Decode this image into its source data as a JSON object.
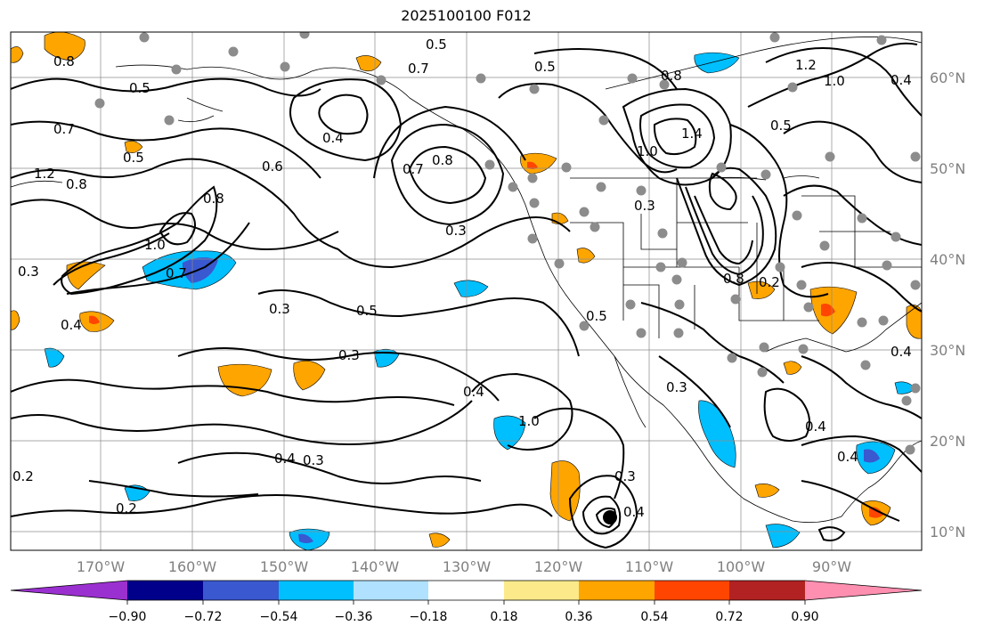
{
  "title": "2025100100 F012",
  "lat_labels": [
    "60°N",
    "50°N",
    "40°N",
    "30°N",
    "20°N",
    "10°N"
  ],
  "lon_labels": [
    "170°W",
    "160°W",
    "150°W",
    "140°W",
    "130°W",
    "120°W",
    "110°W",
    "100°W",
    "90°W"
  ],
  "colorbar": {
    "tick_labels": [
      "−0.90",
      "−0.72",
      "−0.54",
      "−0.36",
      "−0.18",
      "0.18",
      "0.36",
      "0.54",
      "0.72",
      "0.90"
    ],
    "colors": [
      "#9b30d0",
      "#00008b",
      "#3a58cf",
      "#00bfff",
      "#b0e2ff",
      "#ffffff",
      "#fbe98a",
      "#ffa500",
      "#ff4500",
      "#b22222",
      "#ff8fb1"
    ]
  },
  "contour_labels": [
    {
      "text": "0.5"
    },
    {
      "text": "0.7"
    },
    {
      "text": "0.8"
    },
    {
      "text": "0.5"
    },
    {
      "text": "1.2"
    },
    {
      "text": "1.0"
    },
    {
      "text": "0.4"
    },
    {
      "text": "0.7"
    },
    {
      "text": "0.5"
    },
    {
      "text": "0.4"
    },
    {
      "text": "0.7"
    },
    {
      "text": "0.8"
    },
    {
      "text": "0.5"
    },
    {
      "text": "1.0"
    },
    {
      "text": "1.4"
    },
    {
      "text": "0.5"
    },
    {
      "text": "0.8"
    },
    {
      "text": "1.2"
    },
    {
      "text": "0.8"
    },
    {
      "text": "0.6"
    },
    {
      "text": "0.8"
    },
    {
      "text": "0.3"
    },
    {
      "text": "1.0"
    },
    {
      "text": "0.3"
    },
    {
      "text": "0.3"
    },
    {
      "text": "0.7"
    },
    {
      "text": "0.3"
    },
    {
      "text": "0.4"
    },
    {
      "text": "0.5"
    },
    {
      "text": "0.5"
    },
    {
      "text": "0.3"
    },
    {
      "text": "0.8"
    },
    {
      "text": "0.2"
    },
    {
      "text": "0.4"
    },
    {
      "text": "0.4"
    },
    {
      "text": "1.0"
    },
    {
      "text": "0.3"
    },
    {
      "text": "0.4"
    },
    {
      "text": "0.3"
    },
    {
      "text": "0.2"
    },
    {
      "text": "0.4"
    },
    {
      "text": "0.3"
    },
    {
      "text": "0.4"
    },
    {
      "text": "0.2"
    },
    {
      "text": "0.4"
    }
  ],
  "station_markers": 60,
  "low_center": "closed-low-marker"
}
